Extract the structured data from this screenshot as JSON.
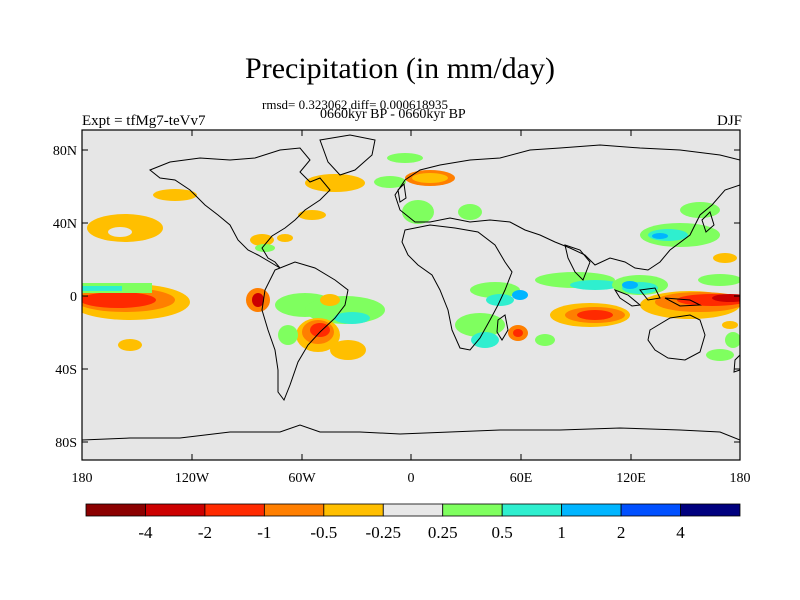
{
  "title": "Precipitation (in mm/day)",
  "subtitle_stats": "rmsd= 0.323062 diff= 0.000618935",
  "subtitle_period": "0660kyr BP - 0660kyr BP",
  "left_label": "Expt = tfMg7-teVv7",
  "right_label": "DJF",
  "lon_ticks": [
    "180",
    "120W",
    "60W",
    "0",
    "60E",
    "120E",
    "180"
  ],
  "lat_ticks": [
    "80N",
    "40N",
    "0",
    "40S",
    "80S"
  ],
  "colorbar": {
    "labels": [
      "-4",
      "-2",
      "-1",
      "-0.5",
      "-0.25",
      "0.25",
      "0.5",
      "1",
      "2",
      "4"
    ],
    "colors": [
      "#8b0000",
      "#cc0000",
      "#ff2a00",
      "#ff7f00",
      "#ffbf00",
      "#e8e8e8",
      "#7fff5f",
      "#2fefcf",
      "#00b5ff",
      "#0050ff",
      "#00007f"
    ]
  },
  "colors": {
    "land_background": "#e6e6e6",
    "coastline": "#000000"
  }
}
